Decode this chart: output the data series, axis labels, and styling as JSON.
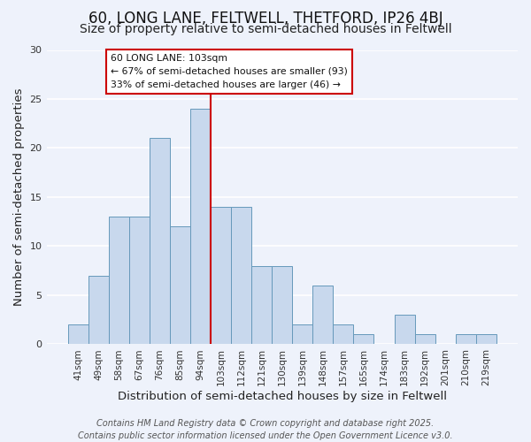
{
  "title": "60, LONG LANE, FELTWELL, THETFORD, IP26 4BJ",
  "subtitle": "Size of property relative to semi-detached houses in Feltwell",
  "xlabel": "Distribution of semi-detached houses by size in Feltwell",
  "ylabel": "Number of semi-detached properties",
  "bar_labels": [
    "41sqm",
    "49sqm",
    "58sqm",
    "67sqm",
    "76sqm",
    "85sqm",
    "94sqm",
    "103sqm",
    "112sqm",
    "121sqm",
    "130sqm",
    "139sqm",
    "148sqm",
    "157sqm",
    "165sqm",
    "174sqm",
    "183sqm",
    "192sqm",
    "201sqm",
    "210sqm",
    "219sqm"
  ],
  "bar_values": [
    2,
    7,
    13,
    13,
    21,
    12,
    24,
    14,
    14,
    8,
    8,
    2,
    6,
    2,
    1,
    0,
    3,
    1,
    0,
    1,
    1
  ],
  "bar_color": "#c8d8ed",
  "bar_edge_color": "#6699bb",
  "vline_color": "#cc0000",
  "annotation_title": "60 LONG LANE: 103sqm",
  "annotation_line1": "← 67% of semi-detached houses are smaller (93)",
  "annotation_line2": "33% of semi-detached houses are larger (46) →",
  "annotation_box_edge": "#cc0000",
  "ylim": [
    0,
    30
  ],
  "yticks": [
    0,
    5,
    10,
    15,
    20,
    25,
    30
  ],
  "footer1": "Contains HM Land Registry data © Crown copyright and database right 2025.",
  "footer2": "Contains public sector information licensed under the Open Government Licence v3.0.",
  "bg_color": "#eef2fb",
  "grid_color": "#ffffff",
  "title_fontsize": 12,
  "subtitle_fontsize": 10,
  "axis_label_fontsize": 9.5,
  "tick_fontsize": 7.5,
  "footer_fontsize": 7
}
